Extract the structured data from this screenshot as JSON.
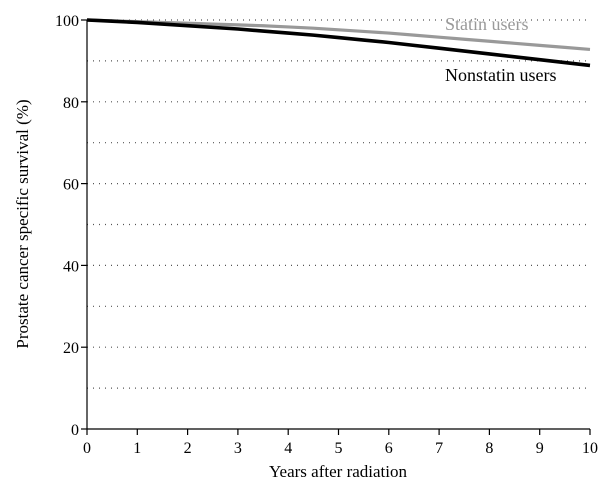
{
  "chart_data": {
    "type": "line",
    "title": "",
    "xlabel": "Years after radiation",
    "ylabel": "Prostate cancer specific survival (%)",
    "xlim": [
      0,
      10
    ],
    "ylim": [
      0,
      100
    ],
    "x_ticks": [
      "0",
      "1",
      "2",
      "3",
      "4",
      "5",
      "6",
      "7",
      "8",
      "9",
      "10"
    ],
    "y_ticks": [
      "0",
      "20",
      "40",
      "60",
      "80",
      "100"
    ],
    "grid": "dotted horizontal lines every 10",
    "series": [
      {
        "name": "Statin users",
        "color": "#999999",
        "x": [
          0,
          0.5,
          1,
          1.5,
          2,
          2.5,
          3,
          3.5,
          4,
          4.5,
          5,
          5.5,
          6,
          6.5,
          7,
          7.5,
          8,
          8.5,
          9,
          9.5,
          10
        ],
        "y": [
          100,
          99.8,
          99.6,
          99.4,
          99.2,
          99.0,
          98.8,
          98.6,
          98.3,
          98.0,
          97.6,
          97.2,
          96.8,
          96.3,
          95.8,
          95.3,
          94.8,
          94.3,
          93.8,
          93.3,
          92.8
        ]
      },
      {
        "name": "Nonstatin users",
        "color": "#000000",
        "x": [
          0,
          0.5,
          1,
          1.5,
          2,
          2.5,
          3,
          3.5,
          4,
          4.5,
          5,
          5.5,
          6,
          6.5,
          7,
          7.5,
          8,
          8.5,
          9,
          9.5,
          10
        ],
        "y": [
          100,
          99.7,
          99.4,
          99.0,
          98.6,
          98.2,
          97.8,
          97.3,
          96.8,
          96.3,
          95.7,
          95.1,
          94.5,
          93.8,
          93.1,
          92.4,
          91.7,
          91.0,
          90.3,
          89.6,
          88.9
        ]
      }
    ]
  }
}
